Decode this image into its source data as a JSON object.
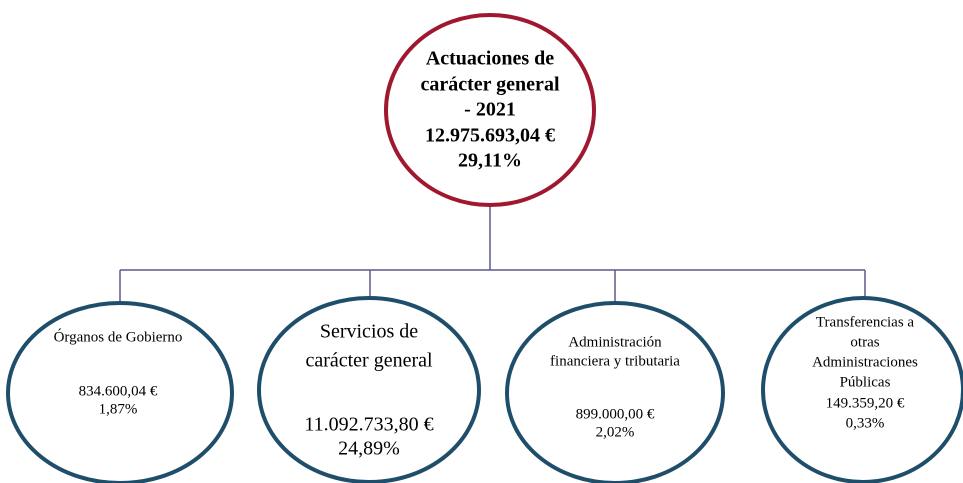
{
  "root": {
    "label_lines": [
      "Actuaciones de",
      "carácter general",
      "- 2021"
    ],
    "amount": "12.975.693,04 €",
    "percent": "29,11%"
  },
  "nodes": [
    {
      "label_lines": [
        "Órganos de Gobierno"
      ],
      "amount": "834.600,04 €",
      "percent": "1,87%"
    },
    {
      "label_lines": [
        "Servicios de",
        "carácter general"
      ],
      "amount": "11.092.733,80 €",
      "percent": "24,89%"
    },
    {
      "label_lines": [
        "Administración",
        "financiera y tributaria"
      ],
      "amount": "899.000,00 €",
      "percent": "2,02%"
    },
    {
      "label_lines": [
        "Transferencias a",
        "otras",
        "Administraciones",
        "Públicas"
      ],
      "amount": "149.359,20 €",
      "percent": "0,33%"
    }
  ]
}
